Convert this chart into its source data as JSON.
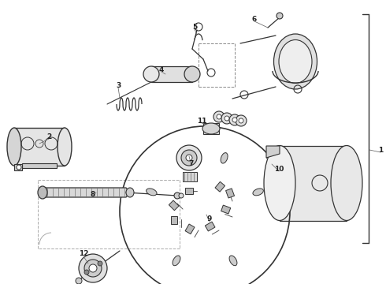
{
  "bg_color": "#ffffff",
  "line_color": "#333333",
  "label_color": "#222222",
  "fig_width": 4.9,
  "fig_height": 3.6,
  "dpi": 100,
  "labels": [
    [
      "1",
      483,
      195
    ],
    [
      "2",
      62,
      178
    ],
    [
      "3",
      152,
      112
    ],
    [
      "4",
      205,
      92
    ],
    [
      "5",
      249,
      38
    ],
    [
      "6",
      323,
      28
    ],
    [
      "7",
      243,
      210
    ],
    [
      "8",
      118,
      250
    ],
    [
      "9",
      268,
      283
    ],
    [
      "10",
      356,
      218
    ],
    [
      "11",
      258,
      158
    ],
    [
      "12",
      108,
      325
    ]
  ]
}
